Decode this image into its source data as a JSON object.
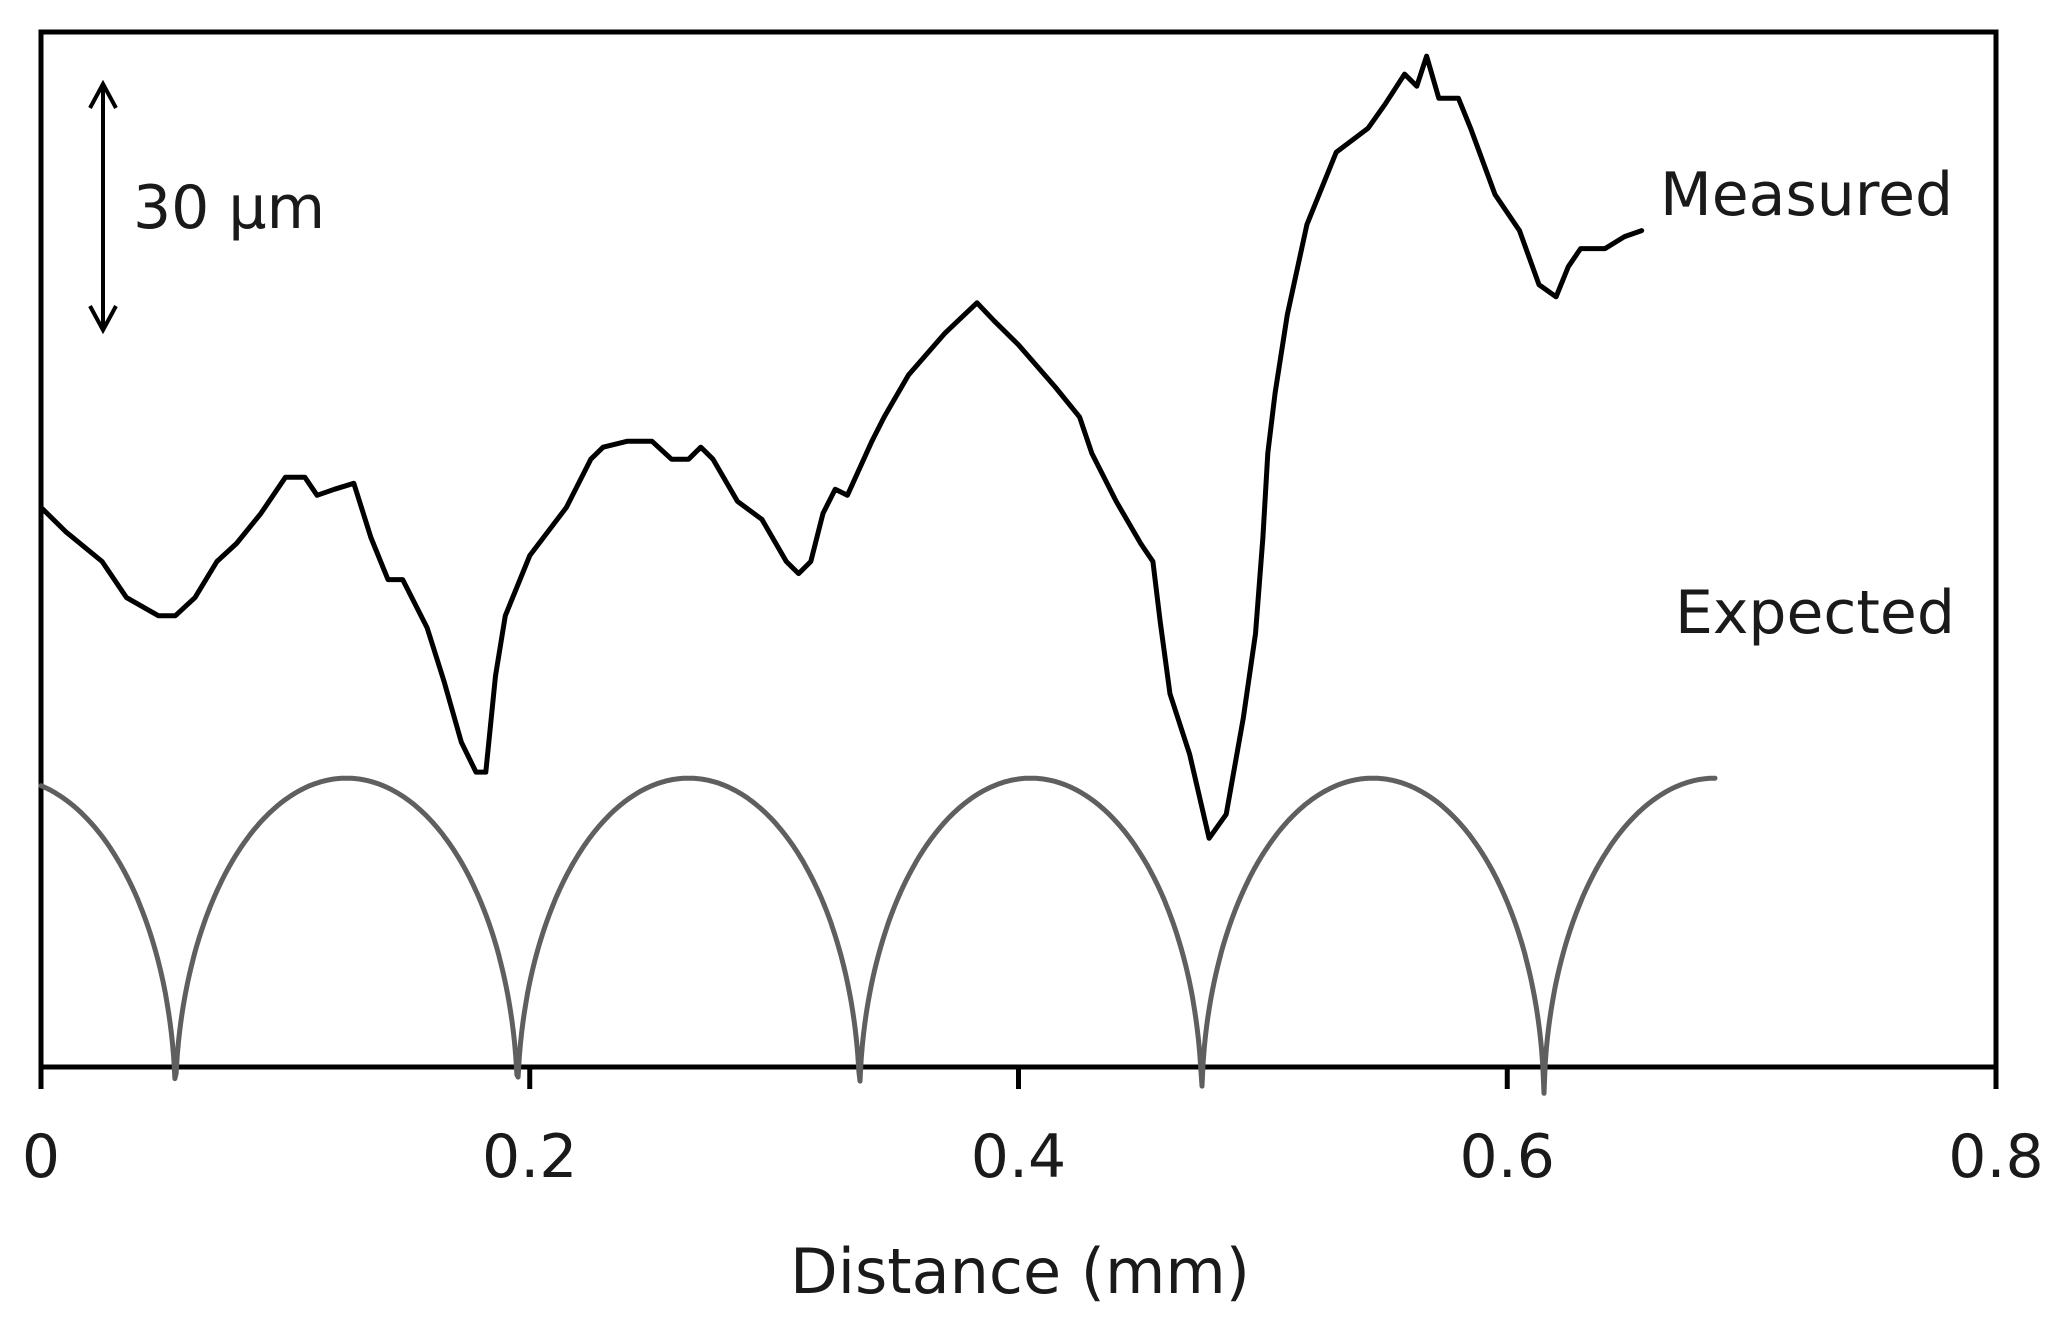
{
  "chart_data": {
    "type": "line",
    "xlabel": "Distance (mm)",
    "ylabel": "",
    "xlim": [
      0,
      0.8
    ],
    "x_ticks": [
      0,
      0.2,
      0.4,
      0.6,
      0.8
    ],
    "x_tick_labels": [
      "0",
      "0.2",
      "0.4",
      "0.6",
      "0.8"
    ],
    "ylim": [
      -130,
      42
    ],
    "y_axis_shown": false,
    "grid": false,
    "legend": "none (series labeled inline at right end of each curve)",
    "scale_bar": {
      "label": "30 µm",
      "length": 30
    },
    "series": [
      {
        "name": "Measured",
        "color": "#000000",
        "x": [
          0,
          0.01,
          0.025,
          0.035,
          0.048,
          0.055,
          0.063,
          0.072,
          0.08,
          0.09,
          0.1,
          0.108,
          0.113,
          0.12,
          0.128,
          0.135,
          0.142,
          0.148,
          0.158,
          0.165,
          0.172,
          0.178,
          0.182,
          0.186,
          0.19,
          0.2,
          0.215,
          0.225,
          0.23,
          0.24,
          0.25,
          0.258,
          0.265,
          0.27,
          0.275,
          0.285,
          0.295,
          0.305,
          0.31,
          0.315,
          0.32,
          0.325,
          0.33,
          0.34,
          0.345,
          0.355,
          0.37,
          0.383,
          0.39,
          0.4,
          0.415,
          0.425,
          0.43,
          0.44,
          0.45,
          0.455,
          0.458,
          0.462,
          0.47,
          0.478,
          0.485,
          0.492,
          0.497,
          0.5,
          0.502,
          0.505,
          0.51,
          0.518,
          0.53,
          0.543,
          0.55,
          0.558,
          0.563,
          0.567,
          0.572,
          0.58,
          0.585,
          0.595,
          0.605,
          0.613,
          0.62,
          0.625,
          0.63,
          0.64,
          0.648,
          0.655
        ],
        "y": [
          -37,
          -41,
          -46,
          -52,
          -55,
          -55,
          -52,
          -46,
          -43,
          -38,
          -32,
          -32,
          -35,
          -34,
          -33,
          -42,
          -49,
          -49,
          -57,
          -66,
          -76,
          -81,
          -81,
          -65,
          -55,
          -45,
          -37,
          -29,
          -27,
          -26,
          -26,
          -29,
          -29,
          -27,
          -29,
          -36,
          -39,
          -46,
          -48,
          -46,
          -38,
          -34,
          -35,
          -26,
          -22,
          -15,
          -8,
          -3,
          -6,
          -10,
          -17,
          -22,
          -28,
          -36,
          -43,
          -46,
          -56,
          -68,
          -78,
          -92,
          -88,
          -72,
          -58,
          -42,
          -28,
          -18,
          -5,
          10,
          22,
          26,
          30,
          35,
          33,
          38,
          31,
          31,
          26,
          15,
          9,
          0,
          -2,
          3,
          6,
          6,
          8,
          9
        ]
      },
      {
        "name": "Expected",
        "color": "#5f5f5f",
        "period": 0.14,
        "first_cusp": 0.055,
        "x_range": [
          0,
          0.685
        ],
        "crest": -82,
        "cusp": -136
      }
    ]
  }
}
